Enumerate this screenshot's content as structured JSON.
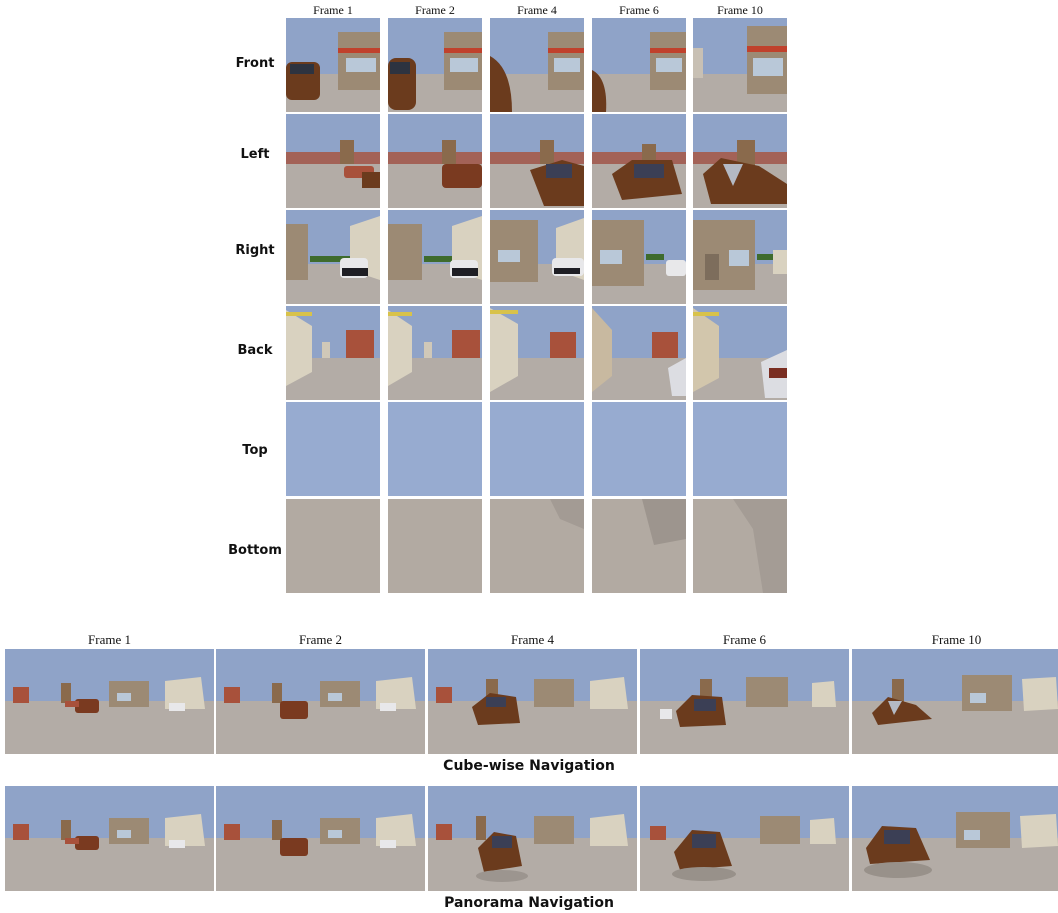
{
  "cube": {
    "frames": [
      "Frame 1",
      "Frame 2",
      "Frame 4",
      "Frame 6",
      "Frame 10"
    ],
    "faces": [
      "Front",
      "Left",
      "Right",
      "Back",
      "Top",
      "Bottom"
    ]
  },
  "panorama": {
    "frames": [
      "Frame 1",
      "Frame 2",
      "Frame 4",
      "Frame 6",
      "Frame 10"
    ],
    "captions": [
      "Cube-wise Navigation",
      "Panorama Navigation"
    ]
  },
  "colors": {
    "sky": "#8fa3c8",
    "ground": "#b3aca6",
    "building_tan": "#9c8a74",
    "building_red": "#a8513b",
    "car_brown": "#6b3b1d",
    "trees": "#3e6b2d"
  }
}
